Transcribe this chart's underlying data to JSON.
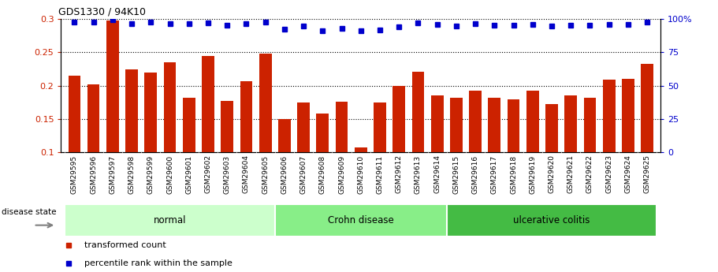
{
  "title": "GDS1330 / 94K10",
  "samples": [
    "GSM29595",
    "GSM29596",
    "GSM29597",
    "GSM29598",
    "GSM29599",
    "GSM29600",
    "GSM29601",
    "GSM29602",
    "GSM29603",
    "GSM29604",
    "GSM29605",
    "GSM29606",
    "GSM29607",
    "GSM29608",
    "GSM29609",
    "GSM29610",
    "GSM29611",
    "GSM29612",
    "GSM29613",
    "GSM29614",
    "GSM29615",
    "GSM29616",
    "GSM29617",
    "GSM29618",
    "GSM29619",
    "GSM29620",
    "GSM29621",
    "GSM29622",
    "GSM29623",
    "GSM29624",
    "GSM29625"
  ],
  "bar_values": [
    0.215,
    0.202,
    0.298,
    0.225,
    0.22,
    0.235,
    0.182,
    0.244,
    0.177,
    0.207,
    0.248,
    0.15,
    0.175,
    0.158,
    0.176,
    0.107,
    0.175,
    0.2,
    0.221,
    0.185,
    0.182,
    0.192,
    0.182,
    0.18,
    0.192,
    0.172,
    0.185,
    0.182,
    0.209,
    0.21,
    0.233
  ],
  "percentile_values": [
    0.2953,
    0.296,
    0.2985,
    0.293,
    0.296,
    0.293,
    0.293,
    0.294,
    0.291,
    0.293,
    0.296,
    0.285,
    0.289,
    0.283,
    0.286,
    0.282,
    0.284,
    0.288,
    0.294,
    0.292,
    0.29,
    0.293,
    0.291,
    0.291,
    0.292,
    0.29,
    0.291,
    0.291,
    0.292,
    0.292,
    0.295
  ],
  "bar_color": "#cc2200",
  "percentile_color": "#0000cc",
  "groups": [
    {
      "label": "normal",
      "start": 0,
      "end": 10,
      "color": "#ccffcc"
    },
    {
      "label": "Crohn disease",
      "start": 11,
      "end": 19,
      "color": "#88ee88"
    },
    {
      "label": "ulcerative colitis",
      "start": 20,
      "end": 30,
      "color": "#44bb44"
    }
  ],
  "disease_state_label": "disease state",
  "ylim": [
    0.1,
    0.3
  ],
  "yticks_left": [
    0.1,
    0.15,
    0.2,
    0.25,
    0.3
  ],
  "yticks_right_labels": [
    "0",
    "25",
    "50",
    "75",
    "100%"
  ],
  "background_color": "#ffffff",
  "plot_bg_color": "#ffffff",
  "xtick_bg_color": "#cccccc",
  "legend_items": [
    {
      "label": "transformed count",
      "color": "#cc2200"
    },
    {
      "label": "percentile rank within the sample",
      "color": "#0000cc"
    }
  ]
}
